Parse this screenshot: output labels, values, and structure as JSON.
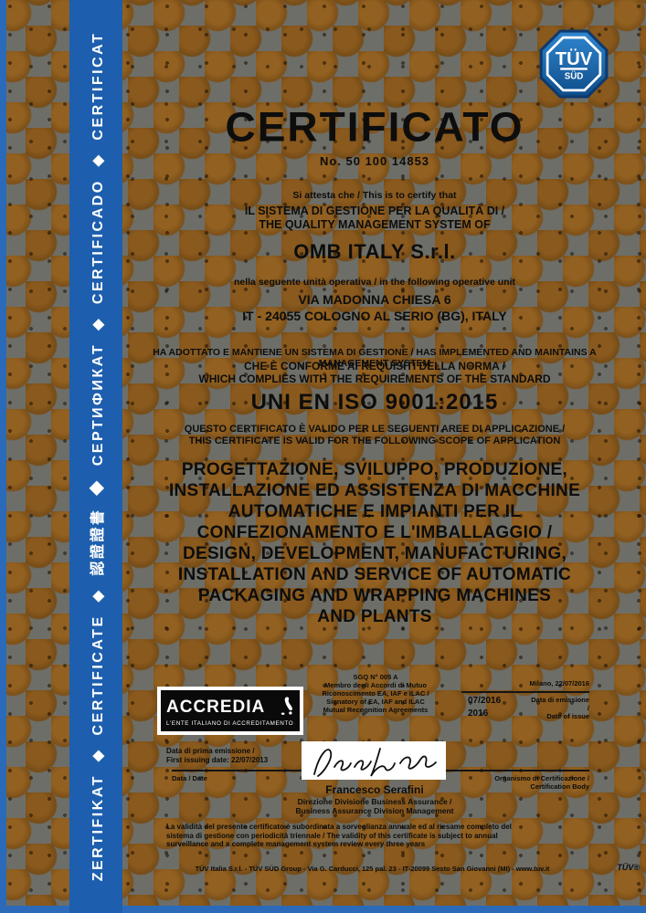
{
  "colors": {
    "sidebar_blue": "#1d5fae",
    "frame_blue": "#2a6ab8",
    "tuv_blue": "#1a6ab0",
    "pattern_brown": "#8d5c1e",
    "pattern_gray": "#6e6e68",
    "accredia_black": "#0a0a0a"
  },
  "sidebar": {
    "text": "ZERTIFIKAT ◆ CERTIFICATE ◆ 認證證書 ◆ СЕРТИФИКАТ ◆ CERTIFICADO ◆ CERTIFICAT"
  },
  "tuv_logo": {
    "top": "TÜV",
    "bottom": "SÜD"
  },
  "header": {
    "title": "CERTIFICATO",
    "cert_no": "No. 50 100 14853"
  },
  "body": {
    "attest": "Si attesta che / This is to certify that",
    "system_of_1": "IL SISTEMA DI GESTIONE PER LA QUALITÀ DI /",
    "system_of_2": "THE QUALITY MANAGEMENT SYSTEM OF",
    "company": "OMB ITALY S.r.l.",
    "unit_intro": "nella seguente unità operativa / in the following operative unit",
    "address_line1": "VIA MADONNA CHIESA 6",
    "address_line2": "IT - 24055 COLOGNO AL SERIO (BG), ITALY",
    "maintains_1": "HA ADOTTATO E MANTIENE UN SISTEMA DI GESTIONE / HAS IMPLEMENTED AND MAINTAINS A MANAGEMENT SYSTEM",
    "maintains_2": "CHE È CONFORME AI REQUISITI DELLA NORMA /",
    "maintains_3": "WHICH COMPLIES WITH THE REQUIREMENTS OF THE STANDARD",
    "standard": "UNI EN ISO 9001:2015",
    "scope_intro_1": "QUESTO CERTIFICATO È VALIDO PER LE SEGUENTI AREE DI APPLICAZIONE /",
    "scope_intro_2": "THIS CERTIFICATE IS VALID FOR THE FOLLOWING SCOPE OF APPLICATION",
    "scope_lines": [
      "PROGETTAZIONE, SVILUPPO, PRODUZIONE,",
      "INSTALLAZIONE ED ASSISTENZA DI MACCHINE",
      "AUTOMATICHE E IMPIANTI PER IL",
      "CONFEZIONAMENTO E L'IMBALLAGGIO /",
      "DESIGN, DEVELOPMENT, MANUFACTURING,",
      "INSTALLATION AND SERVICE OF AUTOMATIC",
      "PACKAGING AND WRAPPING MACHINES",
      "AND PLANTS"
    ]
  },
  "accredia": {
    "name": "ACCREDIA",
    "tagline": "L'ENTE ITALIANO DI ACCREDITAMENTO",
    "side_note_lines": [
      "SGQ N° 005 A",
      "Membro degli Accordi di Mutuo",
      "Riconoscimento EA, IAF e ILAC /",
      "Signatory of EA, IAF and ILAC",
      "Mutual Recognition Agreements"
    ]
  },
  "issue_panel": {
    "label": "Milano, 22/07/2016",
    "date_top": "07/2016",
    "date_bottom": "2016",
    "side_1": "Data di emissione /",
    "side_2": "Date of issue"
  },
  "signature_block": {
    "first_issue_1": "Data di prima emissione /",
    "first_issue_2": "First issuing date: 22/07/2013",
    "left_rule_caption": "Data / Date",
    "right_rule_caption": "Organismo di Certificazione / Certification Body",
    "name": "Francesco Serafini",
    "role_1": "Direzione Divisione Business Assurance /",
    "role_2": "Business Assurance Division Management"
  },
  "notes": {
    "validity": "La validità del presente certificato è subordinata a sorveglianza annuale ed al riesame completo del sistema di gestione con periodicità triennale / The validity of this certificate is subject to annual surveillance and a complete management system review every three years"
  },
  "footer": {
    "line": "TÜV Italia S.r.l. - TÜV SÜD Group - Via G. Carducci, 125 pal. 23 - IT-20099 Sesto San Giovanni (MI) - www.tuv.it",
    "brand": "TÜV®"
  }
}
